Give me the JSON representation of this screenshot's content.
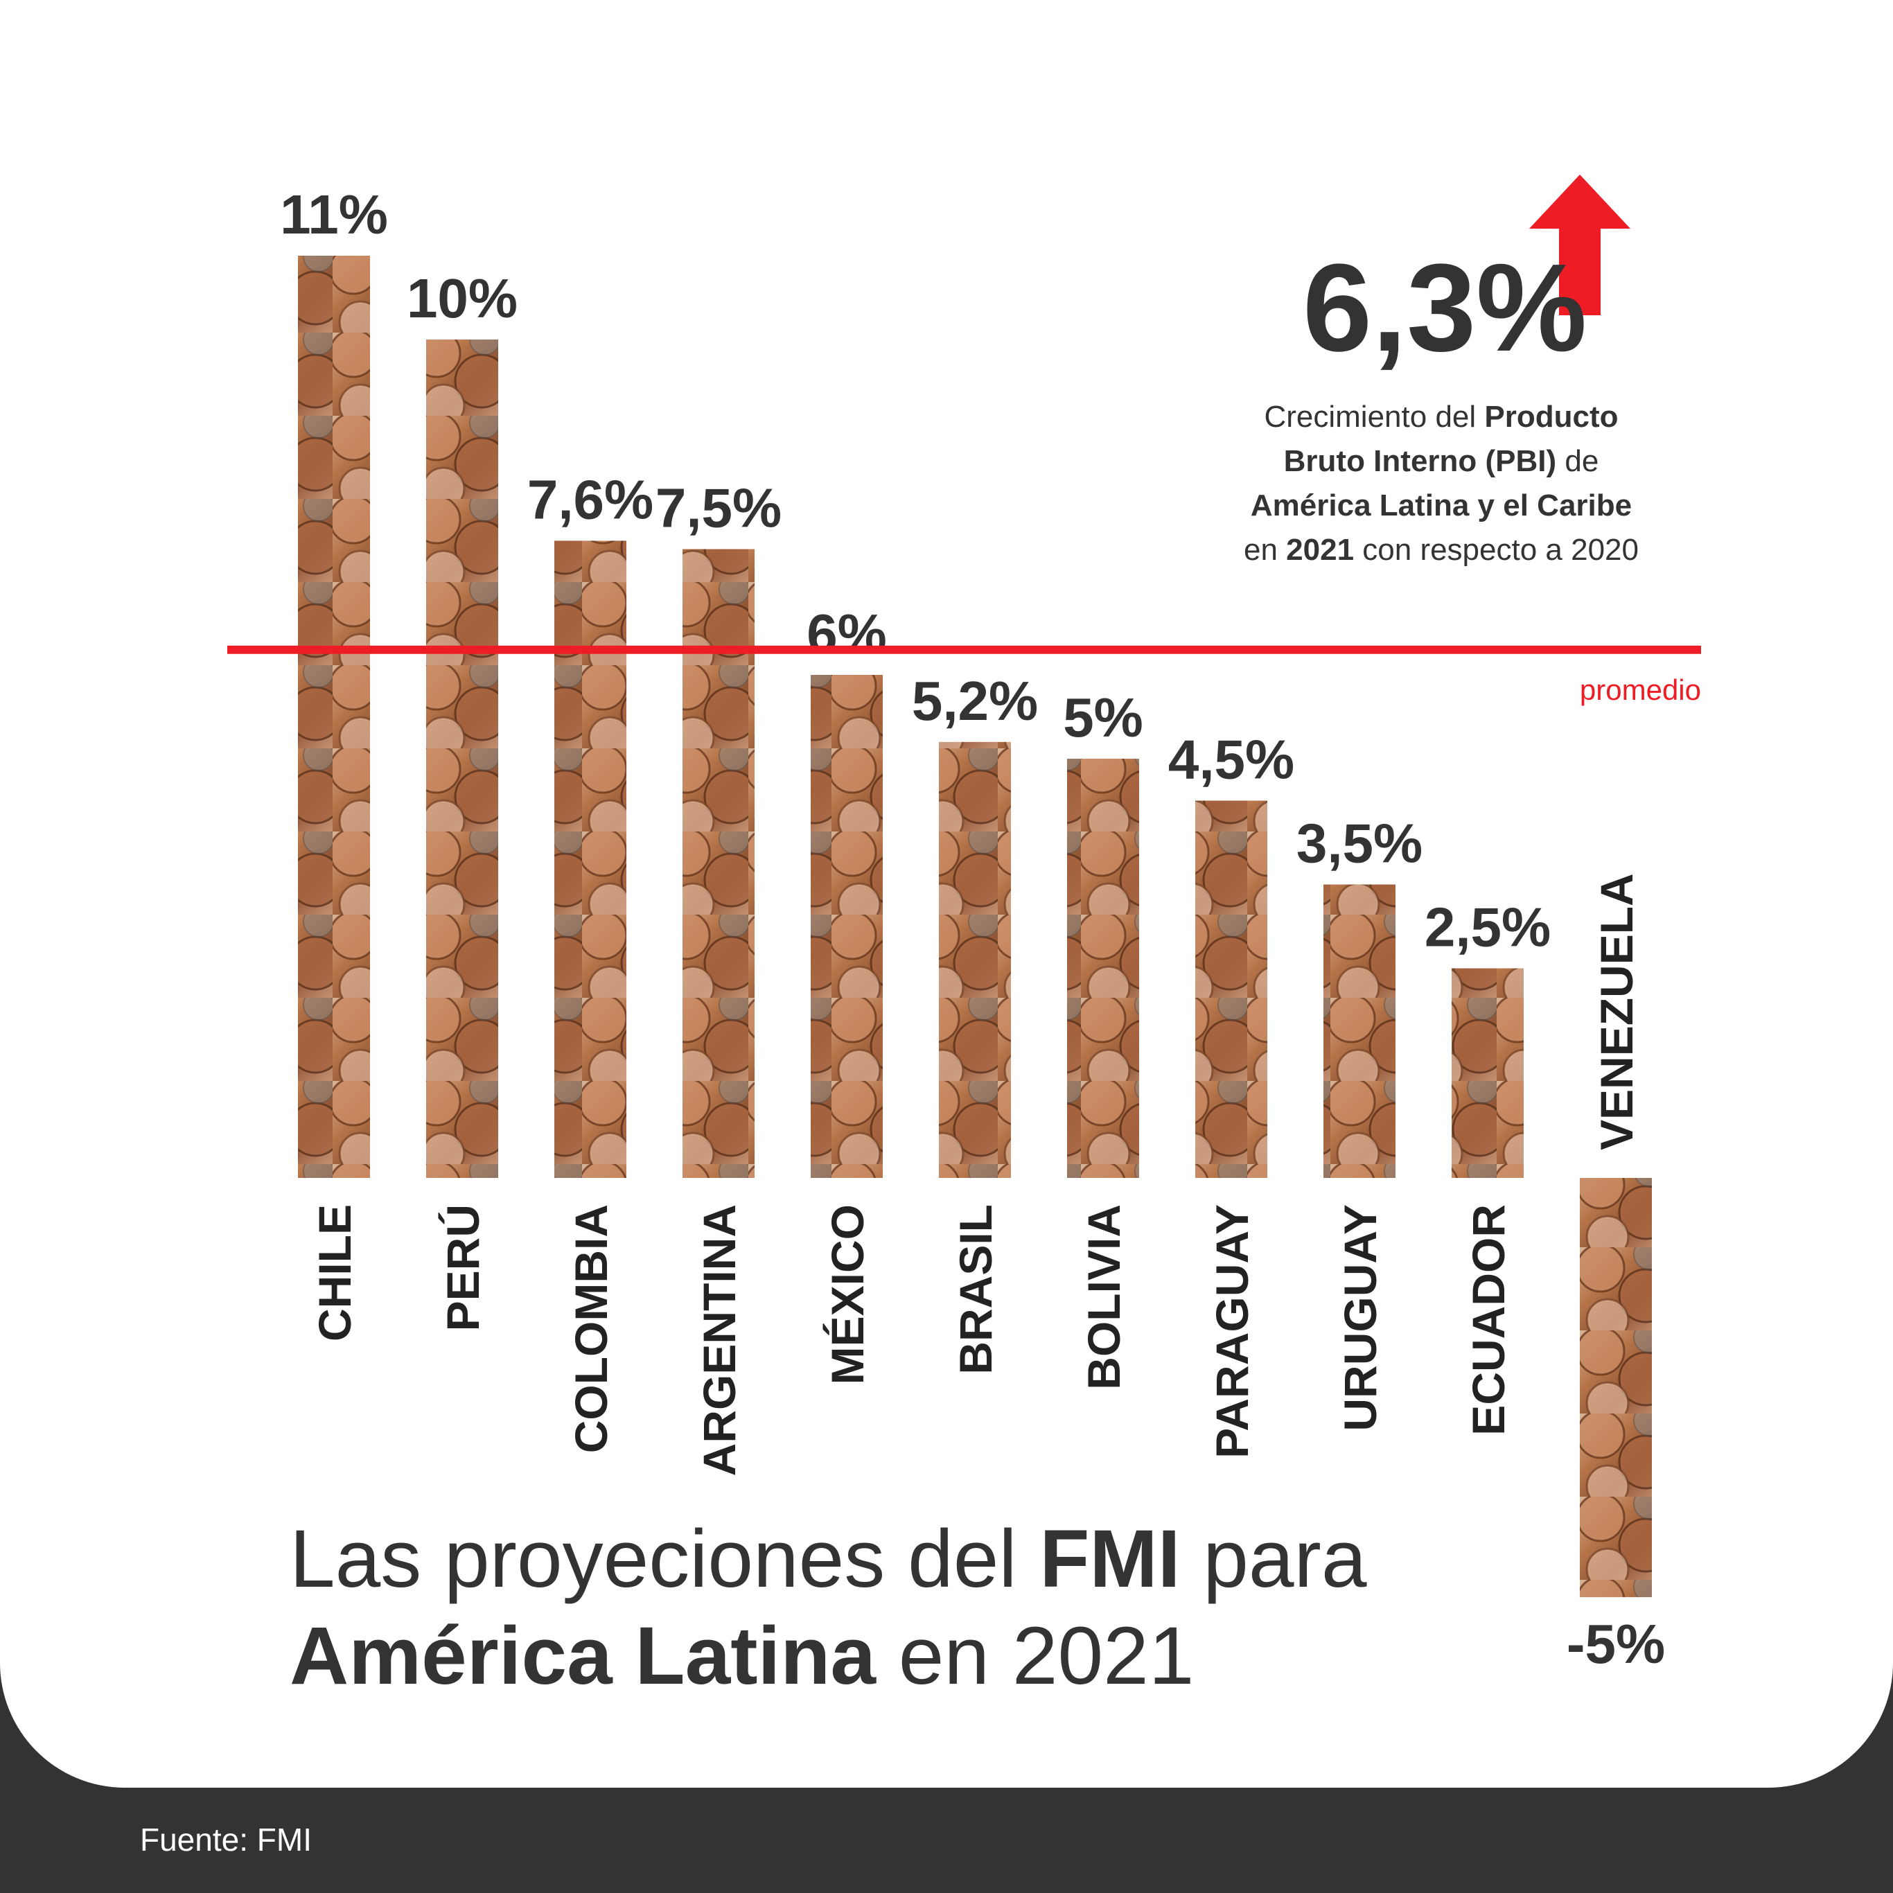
{
  "chart_data": {
    "type": "bar",
    "categories": [
      "CHILE",
      "PERÚ",
      "COLOMBIA",
      "ARGENTINA",
      "MÉXICO",
      "BRASIL",
      "BOLIVIA",
      "PARAGUAY",
      "URUGUAY",
      "ECUADOR",
      "VENEZUELA"
    ],
    "values": [
      11,
      10,
      7.6,
      7.5,
      6,
      5.2,
      5,
      4.5,
      3.5,
      2.5,
      -5
    ],
    "value_labels": [
      "11%",
      "10%",
      "7,6%",
      "7,5%",
      "6%",
      "5,2%",
      "5%",
      "4,5%",
      "3,5%",
      "2,5%",
      "-5%"
    ],
    "average": 6.3,
    "average_label": "promedio",
    "ylim": [
      -5,
      11
    ]
  },
  "highlight": {
    "value": "6,3%",
    "text_1": "Crecimiento del ",
    "text_bold_1": "Producto Bruto Interno (PBI)",
    "text_2": " de ",
    "text_bold_2": "América Latina y el Caribe",
    "text_3": " en ",
    "text_bold_3": "2021",
    "text_4": " con respecto a 2020",
    "arrow_icon": "up-arrow-icon",
    "arrow_color": "#ee1c24"
  },
  "title": {
    "part1": "Las proyeciones del ",
    "part1_bold": "FMI",
    "part2": " para",
    "part3_bold": "América Latina",
    "part4": " en 2021"
  },
  "source": "Fuente:  FMI",
  "colors": {
    "average_line": "#ee1c24",
    "text": "#333333",
    "footer": "#333333",
    "bar_copper": "#b87a52"
  }
}
